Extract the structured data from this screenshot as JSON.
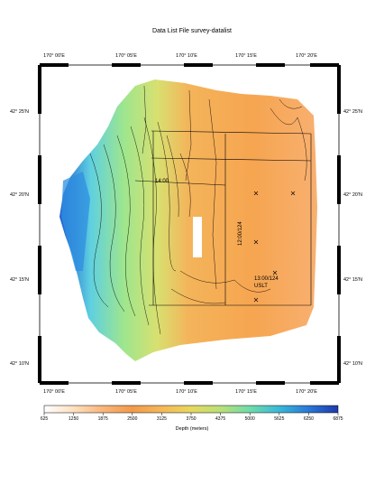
{
  "title": "Data List File survey-datalist",
  "longitude_labels": [
    "170° 00'E",
    "170° 05'E",
    "170° 10'E",
    "170° 15'E",
    "170° 20'E"
  ],
  "latitude_labels": [
    "42° 25'N",
    "42° 20'N",
    "42° 15'N",
    "42° 10'N"
  ],
  "colorbar": {
    "ticks": [
      "625",
      "1250",
      "1875",
      "2500",
      "3125",
      "3750",
      "4375",
      "5000",
      "5625",
      "6250",
      "6875"
    ],
    "label": "Depth (meters)",
    "colors": [
      "#ffffff",
      "#fde0c0",
      "#f9b57a",
      "#f39a4a",
      "#f5b858",
      "#e7d85e",
      "#b9e078",
      "#6fdca9",
      "#38b8d8",
      "#2a78d6",
      "#1f3aa8"
    ]
  },
  "track_labels": [
    "14:00",
    "12:00/124",
    "13:00/124",
    "USLT"
  ]
}
